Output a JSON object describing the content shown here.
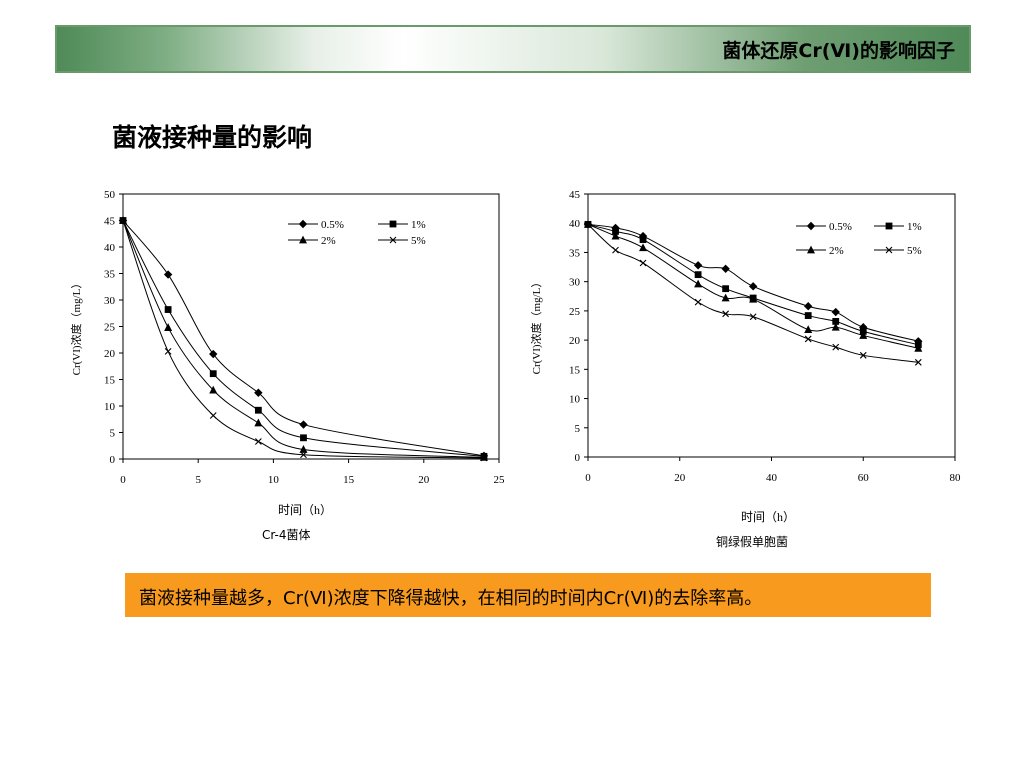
{
  "header": {
    "title": "菌体还原Cr(Ⅵ)的影响因子"
  },
  "section": {
    "title": "菌液接种量的影响"
  },
  "conclusion": {
    "text": "菌液接种量越多，Cr(Ⅵ)浓度下降得越快，在相同的时间内Cr(Ⅵ)的去除率高。"
  },
  "chart_data": [
    {
      "type": "line",
      "caption": "Cr-4菌体",
      "xlabel": "时间（h）",
      "ylabel": "Cr(VI)浓度（mg/L）",
      "xlim": [
        0,
        25
      ],
      "ylim": [
        0,
        50
      ],
      "xticks": [
        0,
        5,
        10,
        15,
        20,
        25
      ],
      "yticks": [
        0,
        5,
        10,
        15,
        20,
        25,
        30,
        35,
        40,
        45,
        50
      ],
      "grid": false,
      "legend": "top-right",
      "series": [
        {
          "name": "0.5%",
          "marker": "diamond",
          "x": [
            0,
            3,
            6,
            9,
            12,
            24
          ],
          "y": [
            45,
            34.8,
            19.8,
            12.5,
            6.5,
            0.6
          ]
        },
        {
          "name": "1%",
          "marker": "square",
          "x": [
            0,
            3,
            6,
            9,
            12,
            24
          ],
          "y": [
            45,
            28.2,
            16.1,
            9.2,
            4,
            0.5
          ]
        },
        {
          "name": "2%",
          "marker": "triangle",
          "x": [
            0,
            3,
            6,
            9,
            12,
            24
          ],
          "y": [
            45,
            24.8,
            13,
            6.8,
            1.8,
            0.3
          ]
        },
        {
          "name": "5%",
          "marker": "x",
          "x": [
            0,
            3,
            6,
            9,
            12,
            24
          ],
          "y": [
            45,
            20.3,
            8.2,
            3.3,
            0.8,
            0.2
          ]
        }
      ]
    },
    {
      "type": "line",
      "caption": "铜绿假单胞菌",
      "xlabel": "时间（h）",
      "ylabel": "Cr(VI)浓度（mg/L）",
      "xlim": [
        0,
        80
      ],
      "ylim": [
        0,
        45
      ],
      "xticks": [
        0,
        20,
        40,
        60,
        80
      ],
      "yticks": [
        0,
        5,
        10,
        15,
        20,
        25,
        30,
        35,
        40,
        45
      ],
      "grid": false,
      "legend": "top-right",
      "series": [
        {
          "name": "0.5%",
          "marker": "diamond",
          "x": [
            0,
            6,
            12,
            24,
            30,
            36,
            48,
            54,
            60,
            72
          ],
          "y": [
            39.8,
            39.2,
            37.8,
            32.8,
            32.2,
            29.2,
            25.8,
            24.8,
            22.2,
            19.8
          ]
        },
        {
          "name": "1%",
          "marker": "square",
          "x": [
            0,
            6,
            12,
            24,
            30,
            36,
            48,
            54,
            60,
            72
          ],
          "y": [
            39.8,
            38.6,
            37.2,
            31.2,
            28.8,
            27.2,
            24.2,
            23.2,
            21.5,
            19.2
          ]
        },
        {
          "name": "2%",
          "marker": "triangle",
          "x": [
            0,
            6,
            12,
            24,
            30,
            36,
            48,
            54,
            60,
            72
          ],
          "y": [
            39.8,
            37.8,
            35.8,
            29.6,
            27.2,
            27,
            21.8,
            22.2,
            20.8,
            18.6
          ]
        },
        {
          "name": "5%",
          "marker": "x",
          "x": [
            0,
            6,
            12,
            24,
            30,
            36,
            48,
            54,
            60,
            72
          ],
          "y": [
            39.8,
            35.4,
            33.2,
            26.5,
            24.5,
            24,
            20.2,
            18.8,
            17.4,
            16.2
          ]
        }
      ]
    }
  ]
}
